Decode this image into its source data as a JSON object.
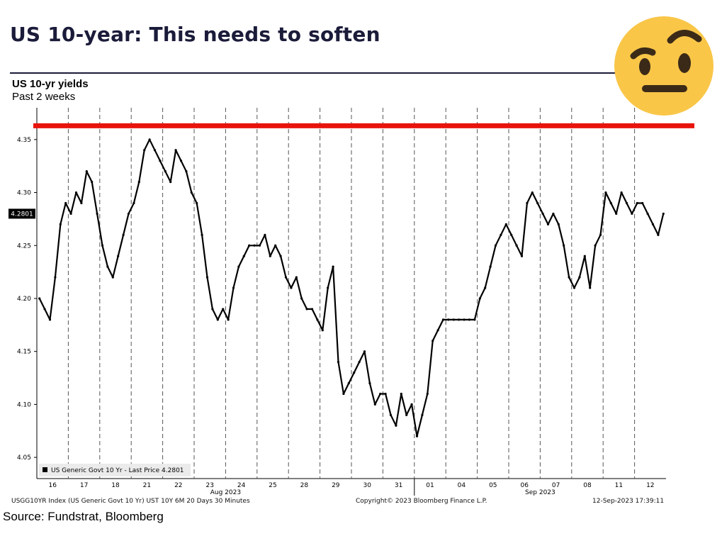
{
  "slide": {
    "title": "US 10-year: This needs to soften",
    "source": "Source: Fundstrat, Bloomberg",
    "emoji_icon": "raised-eyebrow-emoji"
  },
  "chart_data": {
    "type": "line",
    "title": "US 10-yr yields",
    "subtitle": "Past 2 weeks",
    "y_ticks": [
      "4.35",
      "4.30",
      "4.25",
      "4.20",
      "4.15",
      "4.10",
      "4.05"
    ],
    "y_tick_values": [
      4.35,
      4.3,
      4.25,
      4.2,
      4.15,
      4.1,
      4.05
    ],
    "ylim": [
      4.03,
      4.38
    ],
    "grid": false,
    "categories": [
      "16",
      "17",
      "18",
      "21",
      "22",
      "23",
      "24",
      "25",
      "28",
      "29",
      "30",
      "31",
      "01",
      "04",
      "05",
      "06",
      "07",
      "08",
      "11",
      "12"
    ],
    "month_labels": [
      {
        "label": "Aug 2023",
        "after_category": "23"
      },
      {
        "label": "Sep 2023",
        "after_category": "06"
      }
    ],
    "series": [
      {
        "name": "US Generic Govt 10 Yr",
        "color": "#000000",
        "values": [
          [
            4.2,
            4.19,
            4.18,
            4.22,
            4.27,
            4.29
          ],
          [
            4.28,
            4.3,
            4.29,
            4.32,
            4.31,
            4.28
          ],
          [
            4.25,
            4.23,
            4.22,
            4.24,
            4.26,
            4.28
          ],
          [
            4.29,
            4.31,
            4.34,
            4.35,
            4.34,
            4.33
          ],
          [
            4.32,
            4.31,
            4.34,
            4.33,
            4.32,
            4.3
          ],
          [
            4.29,
            4.26,
            4.22,
            4.19,
            4.18,
            4.19
          ],
          [
            4.18,
            4.21,
            4.23,
            4.24,
            4.25,
            4.25
          ],
          [
            4.25,
            4.26,
            4.24,
            4.25,
            4.24,
            4.22
          ],
          [
            4.21,
            4.22,
            4.2,
            4.19,
            4.19,
            4.18
          ],
          [
            4.17,
            4.21,
            4.23,
            4.14,
            4.11,
            4.12
          ],
          [
            4.13,
            4.14,
            4.15,
            4.12,
            4.1,
            4.11
          ],
          [
            4.11,
            4.09,
            4.08,
            4.11,
            4.09,
            4.1
          ],
          [
            4.07,
            4.09,
            4.11,
            4.16,
            4.17,
            4.18
          ],
          [
            4.18,
            4.18,
            4.18,
            4.18,
            4.18,
            4.18
          ],
          [
            4.2,
            4.21,
            4.23,
            4.25,
            4.26,
            4.27
          ],
          [
            4.26,
            4.25,
            4.24,
            4.29,
            4.3,
            4.29
          ],
          [
            4.28,
            4.27,
            4.28,
            4.27,
            4.25,
            4.22
          ],
          [
            4.21,
            4.22,
            4.24,
            4.21,
            4.25,
            4.26
          ],
          [
            4.3,
            4.29,
            4.28,
            4.3,
            4.29,
            4.28
          ],
          [
            4.29,
            4.29,
            4.28,
            4.27,
            4.26,
            4.28
          ]
        ]
      }
    ],
    "hline": {
      "value": 4.363,
      "color": "#e8140c"
    },
    "last_price_label": "4.2801",
    "legend_text": "US Generic Govt 10 Yr - Last Price 4.2801",
    "legend_position": "bottom-left"
  },
  "footer": {
    "left": "USGG10YR Index (US Generic Govt 10 Yr) UST 10Y 6M 20 Days 30 Minutes",
    "center": "Copyright© 2023 Bloomberg Finance L.P.",
    "right": "12-Sep-2023 17:39:11"
  }
}
